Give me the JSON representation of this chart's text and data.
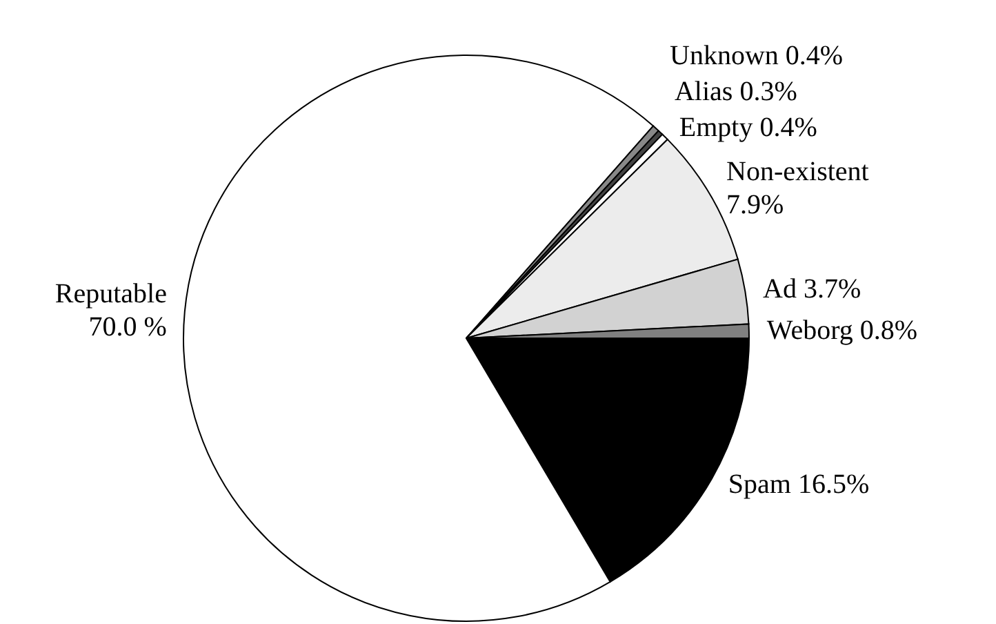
{
  "chart_data": {
    "type": "pie",
    "categories": [
      "Spam",
      "Reputable",
      "Unknown",
      "Alias",
      "Empty",
      "Non-existent",
      "Ad",
      "Weborg"
    ],
    "values": [
      16.5,
      70.0,
      0.4,
      0.3,
      0.4,
      7.9,
      3.7,
      0.8
    ],
    "value_labels": [
      "16.5%",
      "70.0 %",
      "0.4%",
      "0.3%",
      "0.4%",
      "7.9%",
      "3.7%",
      "0.8%"
    ],
    "colors": [
      "#000000",
      "#ffffff",
      "#888888",
      "#444444",
      "#ffffff",
      "#ececec",
      "#d2d2d2",
      "#808080"
    ]
  }
}
